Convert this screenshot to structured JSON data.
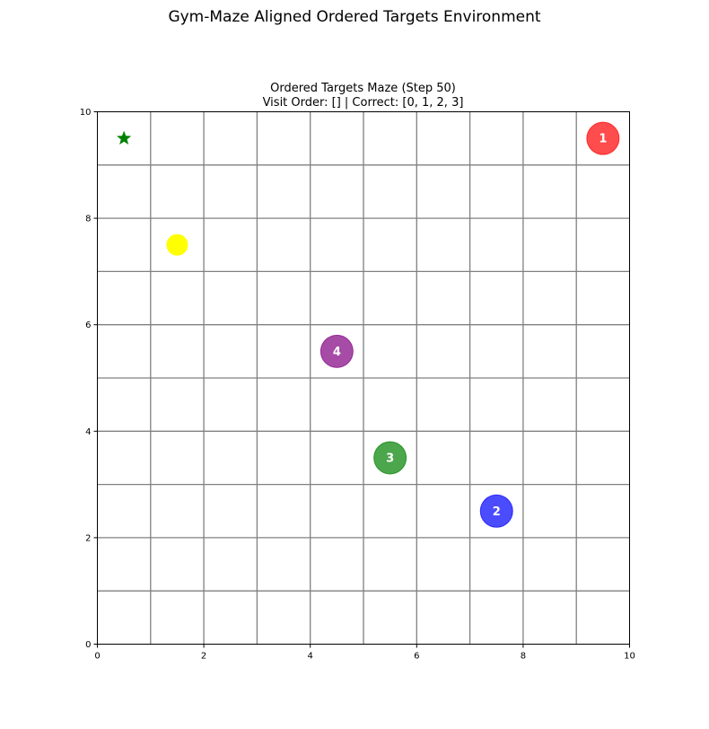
{
  "figure": {
    "suptitle": "Gym-Maze Aligned Ordered Targets Environment"
  },
  "chart_data": {
    "type": "scatter",
    "title": "Ordered Targets Maze (Step 50)",
    "subtitle": "Visit Order: [] | Correct: [0, 1, 2, 3]",
    "xlabel": "",
    "ylabel": "",
    "xlim": [
      0,
      10
    ],
    "ylim": [
      0,
      10
    ],
    "x_ticks": [
      0,
      2,
      4,
      6,
      8,
      10
    ],
    "y_ticks": [
      0,
      2,
      4,
      6,
      8,
      10
    ],
    "grid": true,
    "grid_step": 1,
    "grid_color": "#808080",
    "agent": {
      "marker": "star",
      "x": 0.5,
      "y": 9.5,
      "color": "#008000"
    },
    "extra_points": [
      {
        "x": 1.5,
        "y": 7.5,
        "color": "#ffff00"
      }
    ],
    "targets": [
      {
        "label": "1",
        "x": 9.5,
        "y": 9.5,
        "color": "#ff0000"
      },
      {
        "label": "2",
        "x": 7.5,
        "y": 2.5,
        "color": "#0000ff"
      },
      {
        "label": "3",
        "x": 5.5,
        "y": 3.5,
        "color": "#008000"
      },
      {
        "label": "4",
        "x": 4.5,
        "y": 5.5,
        "color": "#800080"
      }
    ]
  }
}
